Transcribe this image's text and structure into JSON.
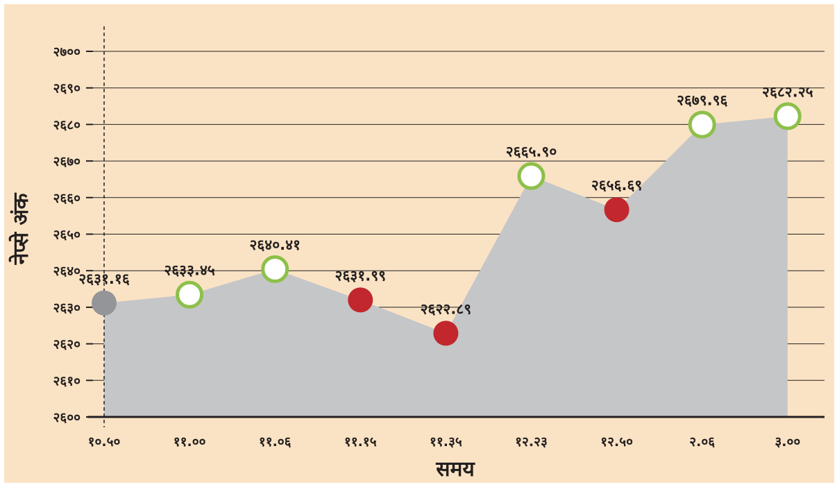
{
  "chart_data": {
    "type": "area",
    "title": "",
    "xlabel": "समय",
    "ylabel": "नेप्से अंक",
    "categories": [
      "१०.५०",
      "११.००",
      "११.०६",
      "११.१५",
      "११.३५",
      "१२.२३",
      "१२.५०",
      "२.०६",
      "३.००"
    ],
    "series": [
      {
        "values": [
          2631.16,
          2633.45,
          2640.41,
          2631.99,
          2622.89,
          2665.9,
          2656.69,
          2679.96,
          2682.25
        ],
        "value_labels": [
          "२६३१.१६",
          "२६३३.४५",
          "२६४०.४१",
          "२६३१.९९",
          "२६२२.८९",
          "२६६५.९०",
          "२६५६.६९",
          "२६७९.९६",
          "२६८२.२५"
        ],
        "marker_status": [
          "neutral",
          "up",
          "up",
          "down",
          "down",
          "up",
          "down",
          "up",
          "up"
        ]
      }
    ],
    "ylim": [
      2600,
      2700
    ],
    "yticks": [
      2600,
      2610,
      2620,
      2630,
      2640,
      2650,
      2660,
      2670,
      2680,
      2690,
      2700
    ],
    "ytick_labels": [
      "२६००",
      "२६१०",
      "२६२०",
      "२६३०",
      "२६४०",
      "२६५०",
      "२६६०",
      "२६७०",
      "२६८०",
      "२६९०",
      "२७००"
    ],
    "grid": true,
    "start_marker": "dashed vertical line at first category"
  },
  "colors": {
    "background": "#fae3c4",
    "area_fill": "#c5c6c8",
    "gridline": "#231f20",
    "text": "#231f20",
    "up_marker_ring": "#8dc04a",
    "up_marker_fill": "#ffffff",
    "down_marker": "#c1272d",
    "neutral_marker": "#939598"
  }
}
